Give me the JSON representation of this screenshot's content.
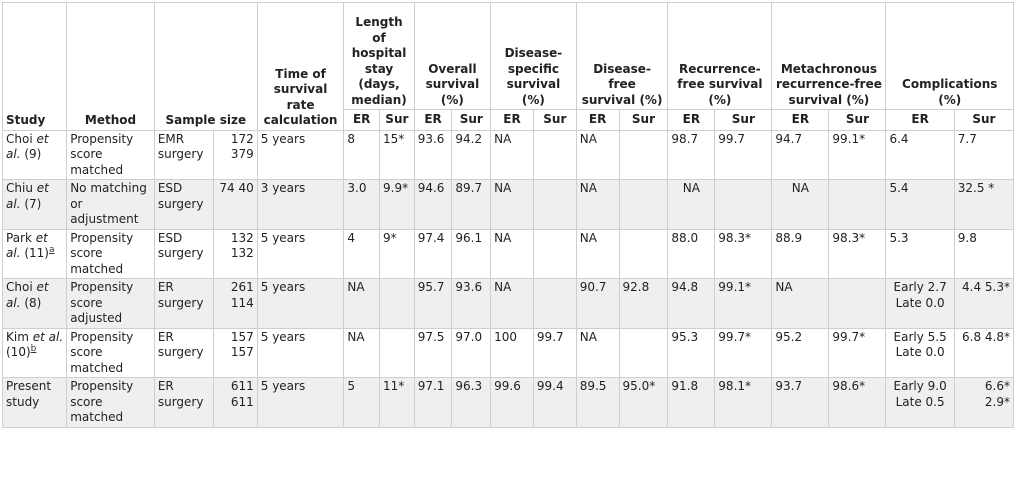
{
  "headers": {
    "study": "Study",
    "method": "Method",
    "sample_size": "Sample size",
    "time_calc": "Time of survival rate calculation",
    "hospital_stay": "Length of hospital stay (days, median)",
    "overall": "Overall survival (%)",
    "disease_specific": "Disease-specific survival (%)",
    "disease_free": "Disease-free survival (%)",
    "recurrence_free": "Recurrence-free survival (%)",
    "metachronous": "Metachronous recurrence-free survival (%)",
    "complications": "Complications (%)"
  },
  "subheaders": {
    "er": "ER",
    "sur": "Sur"
  },
  "rows": [
    {
      "study_a": "Choi ",
      "study_b": "et al.",
      "study_c": " (9)",
      "study_ref": "",
      "method": "Propensity score matched",
      "groups": "EMR surgery",
      "sizes": "172 379",
      "time": "5 years",
      "stay_er": "8",
      "stay_sur": "15*",
      "os_er": "93.6",
      "os_sur": "94.2",
      "dss_er": "NA",
      "dss_sur": "",
      "dfs_er": "NA",
      "dfs_sur": "",
      "rfs_er": "98.7",
      "rfs_sur": "99.7",
      "mrfs_er": "94.7",
      "mrfs_sur": "99.1*",
      "comp_er": "6.4",
      "comp_sur": "7.7"
    },
    {
      "study_a": "Chiu ",
      "study_b": "et al.",
      "study_c": " (7)",
      "study_ref": "",
      "method": "No matching or adjustment",
      "groups": "ESD surgery",
      "sizes": "74 40",
      "time": "3 years",
      "stay_er": "3.0",
      "stay_sur": "9.9*",
      "os_er": "94.6",
      "os_sur": "89.7",
      "dss_er": "NA",
      "dss_sur": "",
      "dfs_er": "NA",
      "dfs_sur": "",
      "rfs_er": "NA",
      "rfs_sur": "",
      "mrfs_er": "NA",
      "mrfs_sur": "",
      "comp_er": "5.4",
      "comp_sur": "32.5 *"
    },
    {
      "study_a": "Park ",
      "study_b": "et al.",
      "study_c": " (11)",
      "study_ref": "a",
      "method": "Propensity score matched",
      "groups": "ESD surgery",
      "sizes": "132 132",
      "time": "5 years",
      "stay_er": "4",
      "stay_sur": "9*",
      "os_er": "97.4",
      "os_sur": "96.1",
      "dss_er": "NA",
      "dss_sur": "",
      "dfs_er": "NA",
      "dfs_sur": "",
      "rfs_er": "88.0",
      "rfs_sur": "98.3*",
      "mrfs_er": "88.9",
      "mrfs_sur": "98.3*",
      "comp_er": "5.3",
      "comp_sur": "9.8"
    },
    {
      "study_a": "Choi ",
      "study_b": "et al.",
      "study_c": " (8)",
      "study_ref": "",
      "method": "Propensity score adjusted",
      "groups": "ER surgery",
      "sizes": "261 114",
      "time": "5 years",
      "stay_er": "NA",
      "stay_sur": "",
      "os_er": "95.7",
      "os_sur": "93.6",
      "dss_er": "NA",
      "dss_sur": "",
      "dfs_er": "90.7",
      "dfs_sur": "92.8",
      "rfs_er": "94.8",
      "rfs_sur": "99.1*",
      "mrfs_er": "NA",
      "mrfs_sur": "",
      "comp_er": "Early 2.7 Late 0.0",
      "comp_sur": "4.4 5.3*"
    },
    {
      "study_a": "Kim ",
      "study_b": "et al.",
      "study_c": " (10)",
      "study_ref": "b",
      "method": "Propensity score matched",
      "groups": "ER surgery",
      "sizes": "157 157",
      "time": "5 years",
      "stay_er": "NA",
      "stay_sur": "",
      "os_er": "97.5",
      "os_sur": "97.0",
      "dss_er": "100",
      "dss_sur": "99.7",
      "dfs_er": "NA",
      "dfs_sur": "",
      "rfs_er": "95.3",
      "rfs_sur": "99.7*",
      "mrfs_er": "95.2",
      "mrfs_sur": "99.7*",
      "comp_er": "Early 5.5 Late 0.0",
      "comp_sur": "6.8 4.8*"
    },
    {
      "study_a": "Present study",
      "study_b": "",
      "study_c": "",
      "study_ref": "",
      "method": "Propensity score matched",
      "groups": "ER surgery",
      "sizes": "611 611",
      "time": "5 years",
      "stay_er": "5",
      "stay_sur": "11*",
      "os_er": "97.1",
      "os_sur": "96.3",
      "dss_er": "99.6",
      "dss_sur": "99.4",
      "dfs_er": "89.5",
      "dfs_sur": "95.0*",
      "rfs_er": "91.8",
      "rfs_sur": "98.1*",
      "mrfs_er": "93.7",
      "mrfs_sur": "98.6*",
      "comp_er": "Early 9.0 Late 0.5",
      "comp_sur": "6.6* 2.9*"
    }
  ]
}
